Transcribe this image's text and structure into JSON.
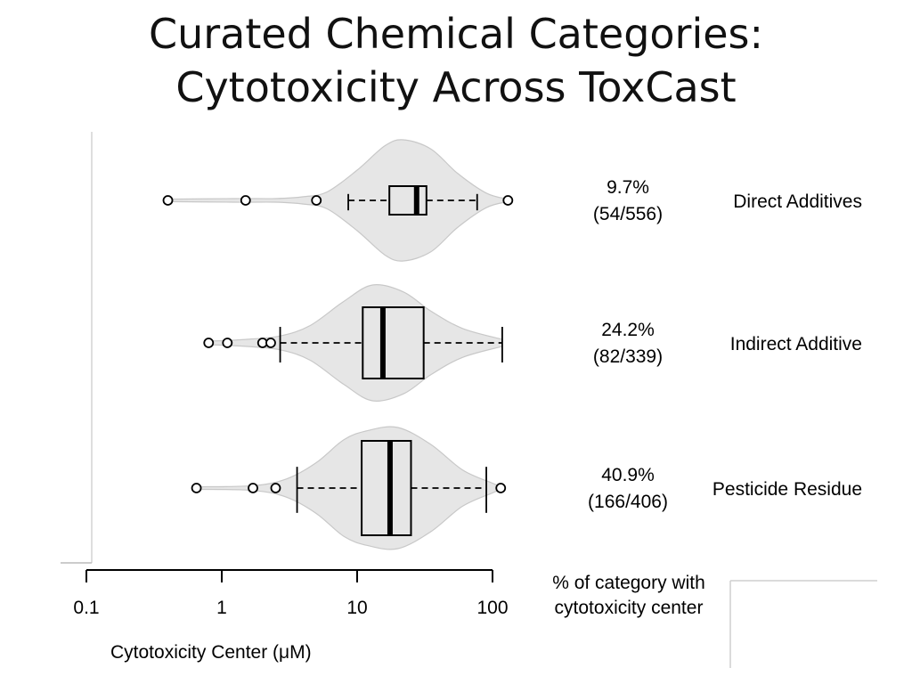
{
  "slide": {
    "title_line1": "Curated Chemical Categories:",
    "title_line2": "Cytotoxicity Across ToxCast"
  },
  "chart_data": {
    "type": "violin+box",
    "x_scale": "log",
    "xlim": [
      0.1,
      100
    ],
    "xticks": [
      0.1,
      1,
      10,
      100
    ],
    "xtick_labels": [
      "0.1",
      "1",
      "10",
      "100"
    ],
    "xlabel": "Cytotoxicity Center (μM)",
    "right_column_label_line1": "% of category with",
    "right_column_label_line2": "cytotoxicity center",
    "colors": {
      "violin_fill": "#e6e6e6",
      "violin_stroke": "#c8c8c8",
      "box_stroke": "#000000"
    },
    "series": [
      {
        "name": "Direct Additives",
        "pct": "9.7%",
        "counts": "(54/556)",
        "whisker_low": 8.6,
        "q1": 17.3,
        "median": 27.5,
        "q3": 32.5,
        "whisker_high": 77,
        "outliers": [
          0.4,
          1.5,
          5.0,
          130
        ],
        "violin": [
          [
            0.4,
            0.02
          ],
          [
            1.2,
            0.03
          ],
          [
            2.5,
            0.03
          ],
          [
            4,
            0.06
          ],
          [
            6,
            0.14
          ],
          [
            10,
            0.5
          ],
          [
            16,
            0.9
          ],
          [
            22,
            1.0
          ],
          [
            35,
            0.85
          ],
          [
            55,
            0.45
          ],
          [
            90,
            0.12
          ],
          [
            130,
            0.02
          ]
        ]
      },
      {
        "name": "Indirect Additive",
        "pct": "24.2%",
        "counts": "(82/339)",
        "whisker_low": 2.7,
        "q1": 11,
        "median": 15.5,
        "q3": 31,
        "whisker_high": 118,
        "outliers": [
          0.8,
          1.1,
          2.0,
          2.3
        ],
        "violin": [
          [
            0.8,
            0.03
          ],
          [
            1.5,
            0.06
          ],
          [
            2.7,
            0.12
          ],
          [
            4.5,
            0.3
          ],
          [
            8,
            0.72
          ],
          [
            13,
            1.0
          ],
          [
            22,
            0.88
          ],
          [
            35,
            0.55
          ],
          [
            60,
            0.25
          ],
          [
            118,
            0.06
          ]
        ]
      },
      {
        "name": "Pesticide Residue",
        "pct": "40.9%",
        "counts": "(166/406)",
        "whisker_low": 3.6,
        "q1": 10.8,
        "median": 17.5,
        "q3": 25,
        "whisker_high": 90,
        "outliers": [
          0.65,
          1.7,
          2.5,
          115
        ],
        "violin": [
          [
            0.65,
            0.02
          ],
          [
            1.7,
            0.04
          ],
          [
            3,
            0.15
          ],
          [
            5,
            0.42
          ],
          [
            8,
            0.8
          ],
          [
            12,
            0.95
          ],
          [
            20,
            1.0
          ],
          [
            35,
            0.72
          ],
          [
            60,
            0.3
          ],
          [
            100,
            0.08
          ],
          [
            115,
            0.02
          ]
        ]
      }
    ]
  }
}
